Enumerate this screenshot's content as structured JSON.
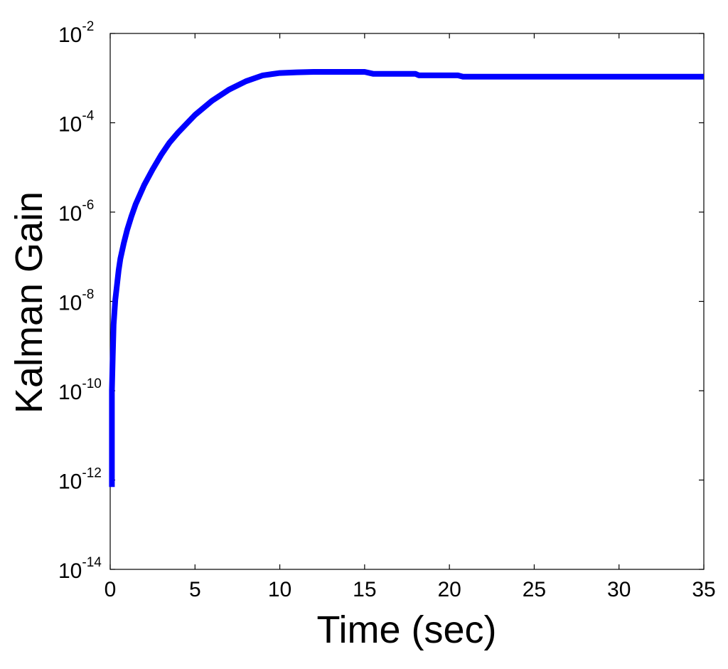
{
  "chart_data": {
    "type": "line",
    "xlabel": "Time (sec)",
    "ylabel": "Kalman Gain",
    "yscale": "log",
    "grid": false,
    "xlim": [
      0,
      35
    ],
    "ylim": [
      1e-14,
      0.01
    ],
    "x_ticks": [
      {
        "value": 0,
        "label": "0"
      },
      {
        "value": 5,
        "label": "5"
      },
      {
        "value": 10,
        "label": "10"
      },
      {
        "value": 15,
        "label": "15"
      },
      {
        "value": 20,
        "label": "20"
      },
      {
        "value": 25,
        "label": "25"
      },
      {
        "value": 30,
        "label": "30"
      },
      {
        "value": 35,
        "label": "35"
      }
    ],
    "y_ticks": [
      {
        "value": 0.01,
        "base": "10",
        "exponent": "-2"
      },
      {
        "value": 0.0001,
        "base": "10",
        "exponent": "-4"
      },
      {
        "value": 1e-06,
        "base": "10",
        "exponent": "-6"
      },
      {
        "value": 1e-08,
        "base": "10",
        "exponent": "-8"
      },
      {
        "value": 1e-10,
        "base": "10",
        "exponent": "-10"
      },
      {
        "value": 1e-12,
        "base": "10",
        "exponent": "-12"
      },
      {
        "value": 1e-14,
        "base": "10",
        "exponent": "-14"
      }
    ],
    "series": [
      {
        "color": "#0000ff",
        "x": [
          0.1,
          0.1,
          0.15,
          0.2,
          0.3,
          0.4,
          0.5,
          0.6,
          0.8,
          1.0,
          1.25,
          1.5,
          2.0,
          2.5,
          3.0,
          3.5,
          4.0,
          4.5,
          5.0,
          6.0,
          7.0,
          8.0,
          9.0,
          10.0,
          11.0,
          12.0,
          13.0,
          14.0,
          15.0,
          15.5,
          16.0,
          17.0,
          18.0,
          18.2,
          19.0,
          20.0,
          20.5,
          20.8,
          22.0,
          25.0,
          30.0,
          35.0
        ],
        "y": [
          7e-13,
          1e-10,
          6e-10,
          3e-09,
          1.1e-08,
          2.3e-08,
          5e-08,
          9e-08,
          2e-07,
          4e-07,
          8e-07,
          1.5e-06,
          4e-06,
          9e-06,
          1.9e-05,
          3.6e-05,
          6e-05,
          9.5e-05,
          0.00015,
          0.00031,
          0.00055,
          0.00085,
          0.00115,
          0.0013,
          0.00135,
          0.00138,
          0.00138,
          0.00138,
          0.00138,
          0.00125,
          0.00125,
          0.00125,
          0.00125,
          0.00115,
          0.00115,
          0.00115,
          0.00115,
          0.00108,
          0.00108,
          0.00108,
          0.00108,
          0.00108
        ]
      }
    ]
  }
}
